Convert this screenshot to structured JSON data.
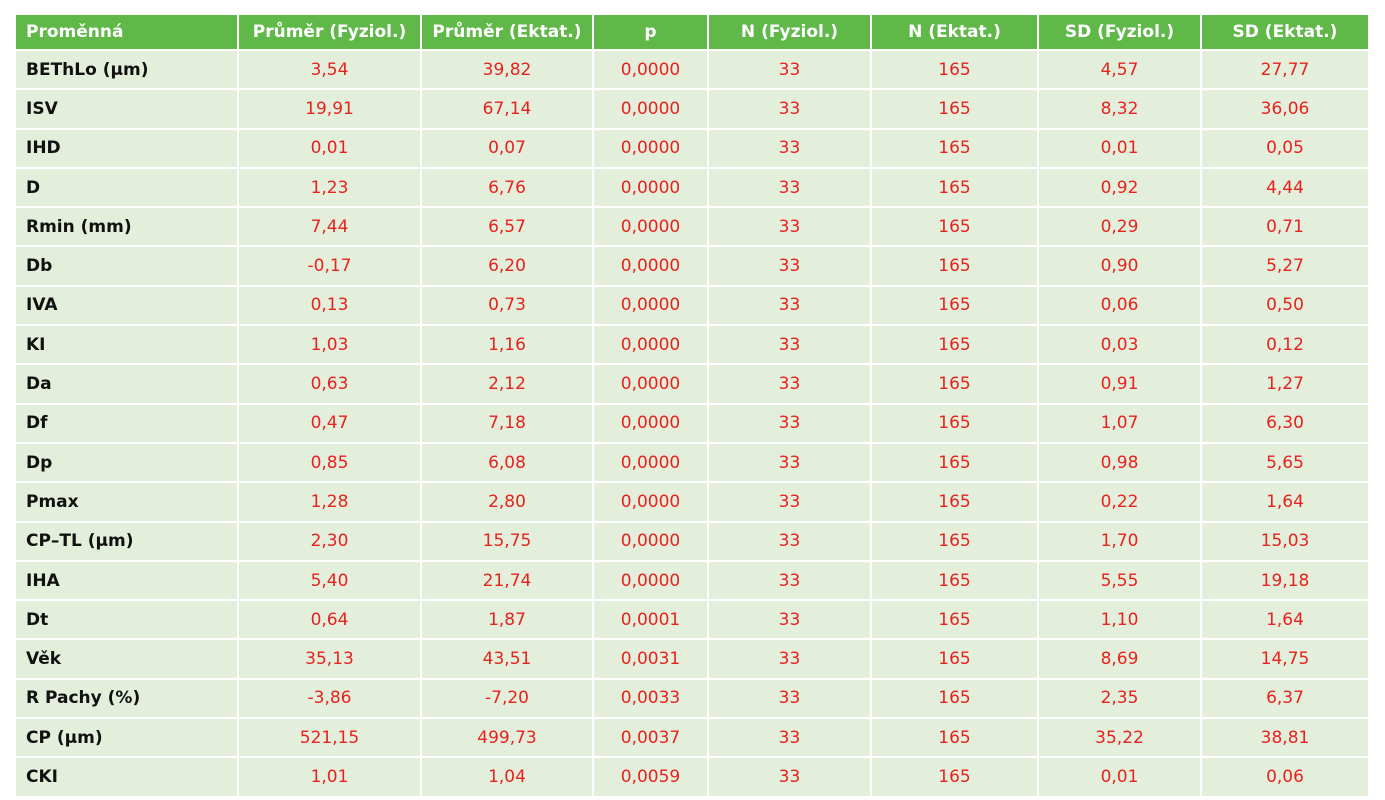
{
  "table": {
    "header": [
      "Proměnná",
      "Průměr (Fyziol.)",
      "Průměr (Ektat.)",
      "p",
      "N (Fyziol.)",
      "N (Ektat.)",
      "SD (Fyziol.)",
      "SD (Ektat.)"
    ],
    "rows": [
      [
        "BEThLo (µm)",
        "3,54",
        "39,82",
        "0,0000",
        "33",
        "165",
        "4,57",
        "27,77"
      ],
      [
        "ISV",
        "19,91",
        "67,14",
        "0,0000",
        "33",
        "165",
        "8,32",
        "36,06"
      ],
      [
        "IHD",
        "0,01",
        "0,07",
        "0,0000",
        "33",
        "165",
        "0,01",
        "0,05"
      ],
      [
        "D",
        "1,23",
        "6,76",
        "0,0000",
        "33",
        "165",
        "0,92",
        "4,44"
      ],
      [
        "Rmin (mm)",
        "7,44",
        "6,57",
        "0,0000",
        "33",
        "165",
        "0,29",
        "0,71"
      ],
      [
        "Db",
        "-0,17",
        "6,20",
        "0,0000",
        "33",
        "165",
        "0,90",
        "5,27"
      ],
      [
        "IVA",
        "0,13",
        "0,73",
        "0,0000",
        "33",
        "165",
        "0,06",
        "0,50"
      ],
      [
        "KI",
        "1,03",
        "1,16",
        "0,0000",
        "33",
        "165",
        "0,03",
        "0,12"
      ],
      [
        "Da",
        "0,63",
        "2,12",
        "0,0000",
        "33",
        "165",
        "0,91",
        "1,27"
      ],
      [
        "Df",
        "0,47",
        "7,18",
        "0,0000",
        "33",
        "165",
        "1,07",
        "6,30"
      ],
      [
        "Dp",
        "0,85",
        "6,08",
        "0,0000",
        "33",
        "165",
        "0,98",
        "5,65"
      ],
      [
        "Pmax",
        "1,28",
        "2,80",
        "0,0000",
        "33",
        "165",
        "0,22",
        "1,64"
      ],
      [
        "CP–TL (µm)",
        "2,30",
        "15,75",
        "0,0000",
        "33",
        "165",
        "1,70",
        "15,03"
      ],
      [
        "IHA",
        "5,40",
        "21,74",
        "0,0000",
        "33",
        "165",
        "5,55",
        "19,18"
      ],
      [
        "Dt",
        "0,64",
        "1,87",
        "0,0001",
        "33",
        "165",
        "1,10",
        "1,64"
      ],
      [
        "Věk",
        "35,13",
        "43,51",
        "0,0031",
        "33",
        "165",
        "8,69",
        "14,75"
      ],
      [
        "R Pachy (%)",
        "-3,86",
        "-7,20",
        "0,0033",
        "33",
        "165",
        "2,35",
        "6,37"
      ],
      [
        "CP (µm)",
        "521,15",
        "499,73",
        "0,0037",
        "33",
        "165",
        "35,22",
        "38,81"
      ],
      [
        "CKI",
        "1,01",
        "1,04",
        "0,0059",
        "33",
        "165",
        "0,01",
        "0,06"
      ]
    ]
  }
}
